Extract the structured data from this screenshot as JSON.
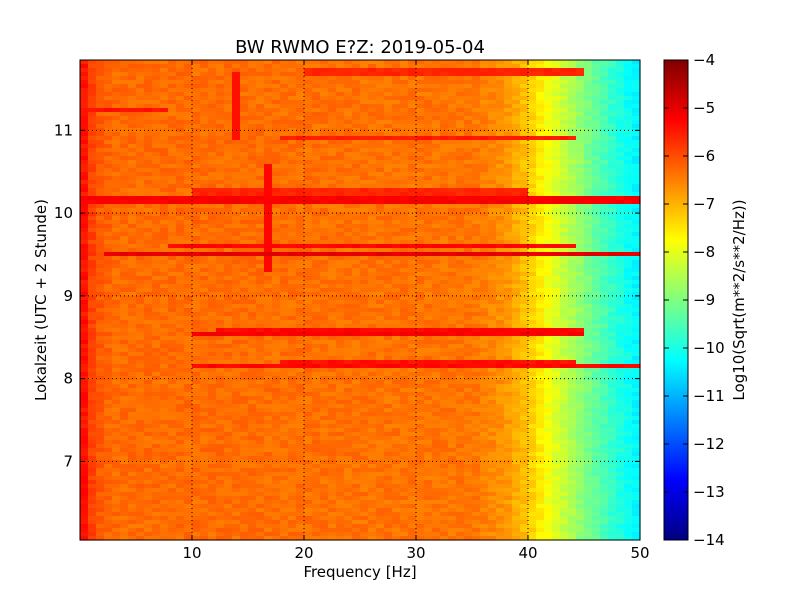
{
  "chart_data": {
    "type": "heatmap",
    "title": "BW RWMO E?Z: 2019-05-04",
    "xlabel": "Frequency [Hz]",
    "ylabel": "Lokalzeit (UTC + 2 Stunde)",
    "colorbar_label": "Log10(Sqrt(m**2/s**2/Hz))",
    "xlim": [
      0,
      50
    ],
    "ylim": [
      11.85,
      6.05
    ],
    "y_inverted": true,
    "clim": [
      -14,
      -4
    ],
    "x_ticks": [
      10,
      20,
      30,
      40,
      50
    ],
    "x_tick_labels": [
      "10",
      "20",
      "30",
      "40",
      "50"
    ],
    "y_ticks": [
      7,
      8,
      9,
      10,
      11
    ],
    "y_tick_labels": [
      "7",
      "8",
      "9",
      "10",
      "11"
    ],
    "colorbar_ticks": [
      -4,
      -5,
      -6,
      -7,
      -8,
      -9,
      -10,
      -11,
      -12,
      -13,
      -14
    ],
    "colorbar_tick_labels": [
      "−4",
      "−5",
      "−6",
      "−7",
      "−8",
      "−9",
      "−10",
      "−11",
      "−12",
      "−13",
      "−14"
    ],
    "colormap": "jet",
    "grid": true,
    "grid_style": "dotted",
    "background_level": -6.3,
    "spectral_profile": {
      "frequency": [
        0,
        0.5,
        1.5,
        3,
        10,
        35,
        38,
        40,
        42,
        44,
        46,
        48,
        49.5
      ],
      "level": [
        -5.0,
        -5.6,
        -6.1,
        -6.3,
        -6.3,
        -6.4,
        -6.7,
        -7.2,
        -7.9,
        -8.6,
        -9.3,
        -9.9,
        -10.3
      ]
    },
    "bands": [
      {
        "time": 8.15,
        "f_start": 10,
        "f_end": 50,
        "level": -5.3
      },
      {
        "time": 8.2,
        "f_start": 18,
        "f_end": 44,
        "level": -5.4
      },
      {
        "time": 8.55,
        "f_start": 10,
        "f_end": 45,
        "level": -5.2
      },
      {
        "time": 8.6,
        "f_start": 12,
        "f_end": 45,
        "level": -5.3
      },
      {
        "time": 9.5,
        "f_start": 2,
        "f_end": 50,
        "level": -5.0
      },
      {
        "time": 9.6,
        "f_start": 8,
        "f_end": 44,
        "level": -5.3
      },
      {
        "time": 10.15,
        "f_start": 0,
        "f_end": 50,
        "level": -5.2
      },
      {
        "time": 10.25,
        "f_start": 10,
        "f_end": 40,
        "level": -5.6
      },
      {
        "time": 10.9,
        "f_start": 18,
        "f_end": 44,
        "level": -5.5
      },
      {
        "time": 11.25,
        "f_start": 0,
        "f_end": 8,
        "level": -5.4
      },
      {
        "time": 11.7,
        "f_start": 20,
        "f_end": 45,
        "level": -5.6
      }
    ],
    "vertical_features": [
      {
        "frequency": 16.5,
        "t_start": 9.3,
        "t_end": 10.6,
        "level": -5.3
      },
      {
        "frequency": 14.0,
        "t_start": 10.9,
        "t_end": 11.7,
        "level": -5.4
      }
    ]
  }
}
